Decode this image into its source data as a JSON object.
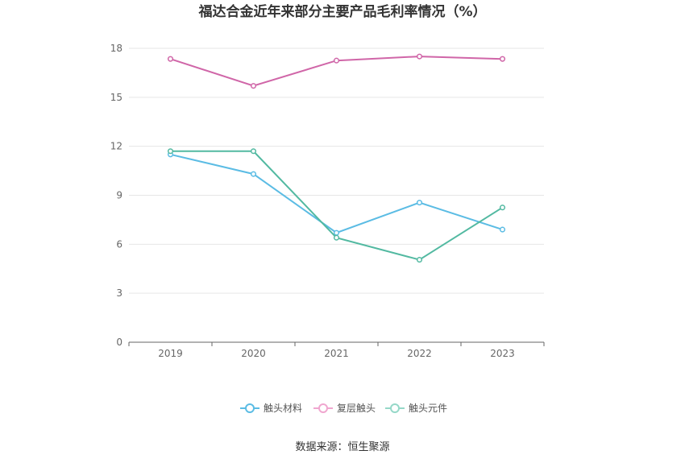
{
  "chart_data": {
    "type": "line",
    "title": "福达合金近年来部分主要产品毛利率情况（%）",
    "x": [
      "2019",
      "2020",
      "2021",
      "2022",
      "2023"
    ],
    "series": [
      {
        "name": "触头材料",
        "values": [
          11.5,
          10.3,
          6.7,
          8.55,
          6.9
        ],
        "color": "#5bbce4"
      },
      {
        "name": "复层触头",
        "values": [
          17.35,
          15.7,
          17.25,
          17.5,
          17.35
        ],
        "color": "#d066a8"
      },
      {
        "name": "触头元件",
        "values": [
          11.7,
          11.7,
          6.4,
          5.05,
          8.25
        ],
        "color": "#52b9a1"
      }
    ],
    "ylim": [
      0,
      18
    ],
    "yticks": [
      0,
      3,
      6,
      9,
      12,
      15,
      18
    ],
    "grid": true,
    "legend_position": "bottom",
    "legend_colors": [
      "#5bbce4",
      "#f0a6cf",
      "#95d8c8"
    ]
  },
  "source_text": "数据来源：恒生聚源"
}
